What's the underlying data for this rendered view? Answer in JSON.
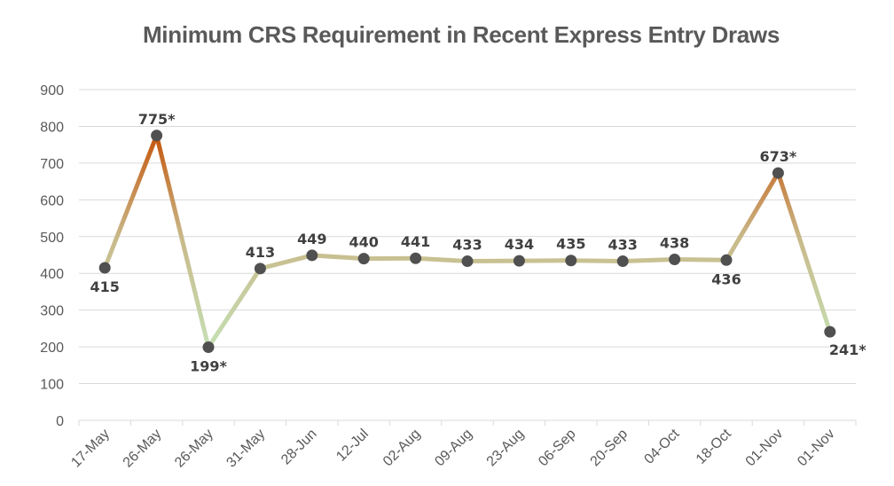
{
  "chart_data": {
    "type": "line",
    "title": "Minimum CRS Requirement in Recent Express Entry Draws",
    "xlabel": "",
    "ylabel": "",
    "ylim": [
      0,
      900
    ],
    "yticks": [
      0,
      100,
      200,
      300,
      400,
      500,
      600,
      700,
      800,
      900
    ],
    "grid": true,
    "legend": "none",
    "categories": [
      "17-May",
      "26-May",
      "26-May",
      "31-May",
      "28-Jun",
      "12-Jul",
      "02-Aug",
      "09-Aug",
      "23-Aug",
      "06-Sep",
      "20-Sep",
      "04-Oct",
      "18-Oct",
      "01-Nov",
      "01-Nov"
    ],
    "series": [
      {
        "name": "Minimum CRS",
        "values": [
          415,
          775,
          199,
          413,
          449,
          440,
          441,
          433,
          434,
          435,
          433,
          438,
          436,
          673,
          241
        ],
        "data_labels": [
          "415",
          "775*",
          "199*",
          "413",
          "449",
          "440",
          "441",
          "433",
          "434",
          "435",
          "433",
          "438",
          "436",
          "673*",
          "241*"
        ],
        "label_positions": [
          "below",
          "above",
          "below",
          "above",
          "above",
          "above",
          "above",
          "above",
          "above",
          "above",
          "above",
          "above",
          "below",
          "above",
          "below-right"
        ]
      }
    ],
    "colors": {
      "line_high": "#c55a11",
      "line_mid": "#c9b98a",
      "line_low": "#c5e0b4",
      "marker": "#505050",
      "grid": "#d9d9d9",
      "text": "#595959"
    }
  }
}
